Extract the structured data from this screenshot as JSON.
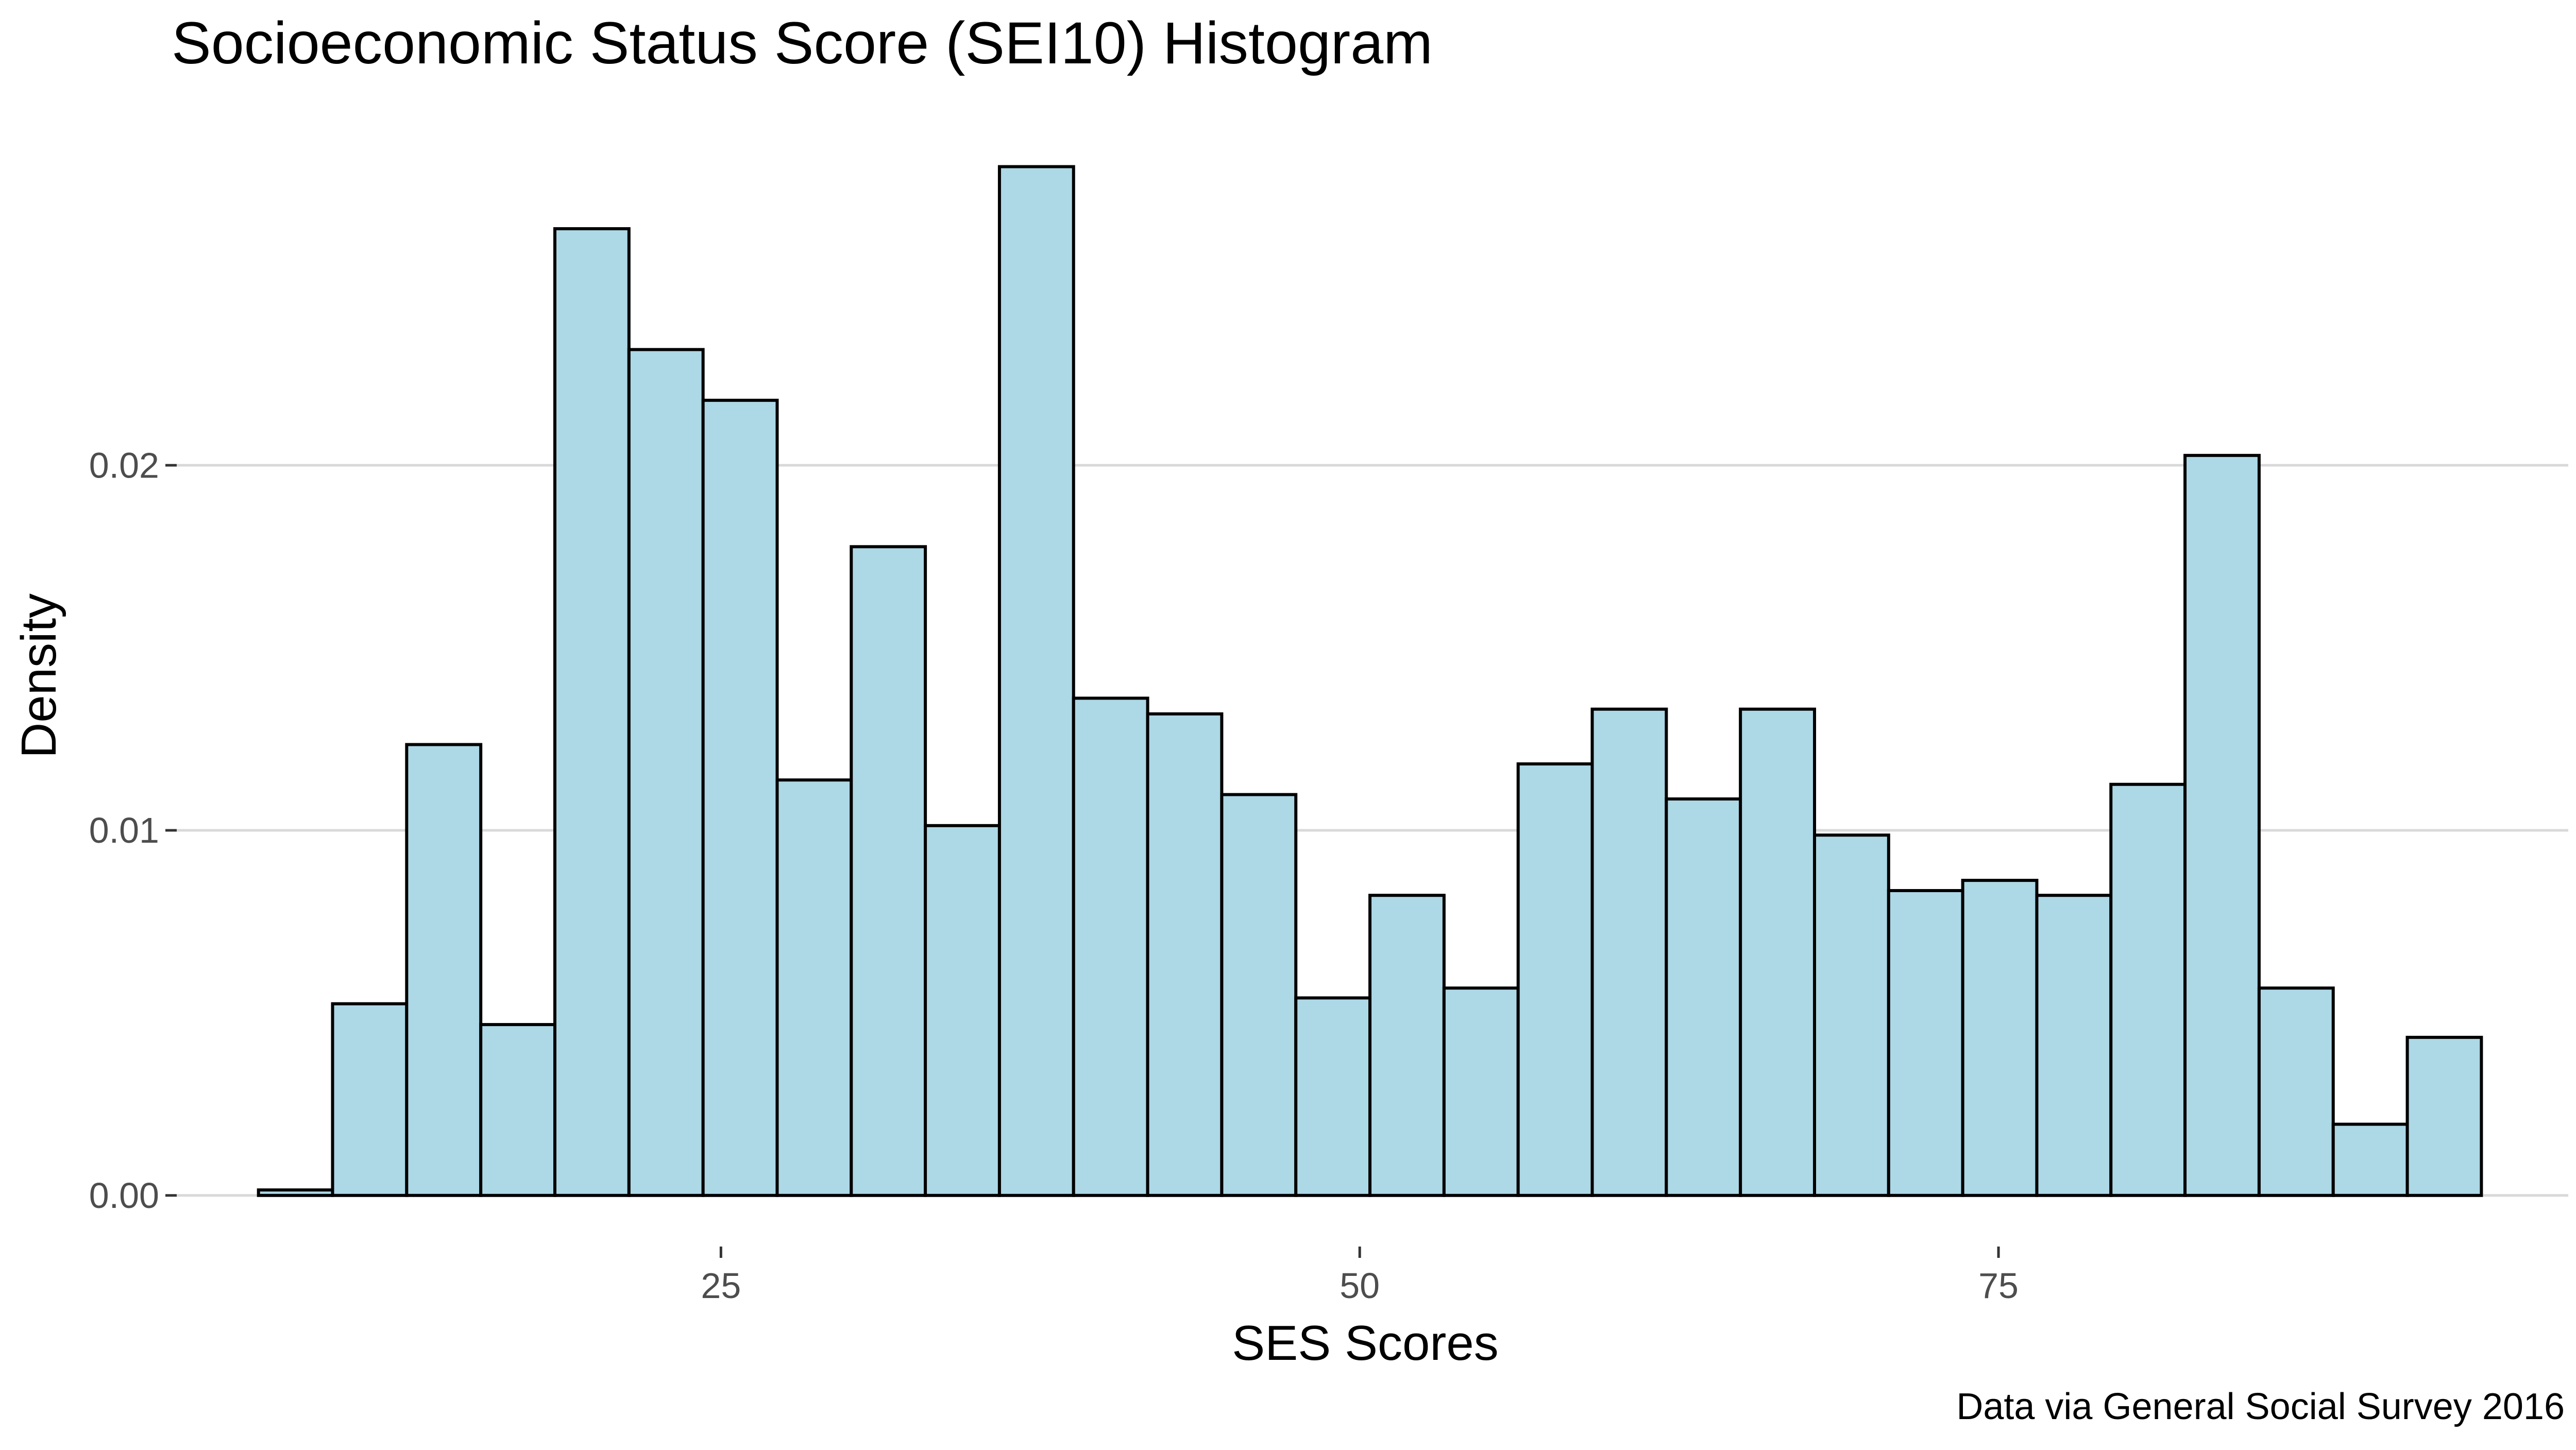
{
  "chart_data": {
    "type": "bar",
    "title": "Socioeconomic Status Score (SEI10) Histogram",
    "xlabel": "SES Scores",
    "ylabel": "Density",
    "caption": "Data via General Social Survey 2016",
    "xlim": [
      3.7,
      97.3
    ],
    "ylim": [
      -0.0014,
      0.0295
    ],
    "x_ticks": [
      25,
      50,
      75
    ],
    "x_tick_labels": [
      "25",
      "50",
      "75"
    ],
    "y_ticks": [
      0.0,
      0.01,
      0.02
    ],
    "y_tick_labels": [
      "0.00",
      "0.01",
      "0.02"
    ],
    "grid": "horizontal major gridlines only",
    "bar_fill": "#add8e6",
    "bar_outline": "#000000",
    "bins": [
      {
        "x0": 6.9,
        "x1": 9.8,
        "density": 0.00015
      },
      {
        "x0": 9.8,
        "x1": 12.7,
        "density": 0.00525
      },
      {
        "x0": 12.7,
        "x1": 15.6,
        "density": 0.01235
      },
      {
        "x0": 15.6,
        "x1": 18.5,
        "density": 0.00468
      },
      {
        "x0": 18.5,
        "x1": 21.4,
        "density": 0.02648
      },
      {
        "x0": 21.4,
        "x1": 24.3,
        "density": 0.02317
      },
      {
        "x0": 24.3,
        "x1": 27.2,
        "density": 0.02178
      },
      {
        "x0": 27.2,
        "x1": 30.1,
        "density": 0.01138
      },
      {
        "x0": 30.1,
        "x1": 33.0,
        "density": 0.01777
      },
      {
        "x0": 33.0,
        "x1": 35.9,
        "density": 0.01013
      },
      {
        "x0": 35.9,
        "x1": 38.8,
        "density": 0.02818
      },
      {
        "x0": 38.8,
        "x1": 41.7,
        "density": 0.01362
      },
      {
        "x0": 41.7,
        "x1": 44.6,
        "density": 0.01319
      },
      {
        "x0": 44.6,
        "x1": 47.5,
        "density": 0.01098
      },
      {
        "x0": 47.5,
        "x1": 50.4,
        "density": 0.00541
      },
      {
        "x0": 50.4,
        "x1": 53.3,
        "density": 0.00822
      },
      {
        "x0": 53.3,
        "x1": 56.2,
        "density": 0.00568
      },
      {
        "x0": 56.2,
        "x1": 59.1,
        "density": 0.01182
      },
      {
        "x0": 59.1,
        "x1": 62.0,
        "density": 0.01332
      },
      {
        "x0": 62.0,
        "x1": 64.9,
        "density": 0.01086
      },
      {
        "x0": 64.9,
        "x1": 67.8,
        "density": 0.01332
      },
      {
        "x0": 67.8,
        "x1": 70.7,
        "density": 0.00987
      },
      {
        "x0": 70.7,
        "x1": 73.6,
        "density": 0.00835
      },
      {
        "x0": 73.6,
        "x1": 76.5,
        "density": 0.00863
      },
      {
        "x0": 76.5,
        "x1": 79.4,
        "density": 0.00822
      },
      {
        "x0": 79.4,
        "x1": 82.3,
        "density": 0.01126
      },
      {
        "x0": 82.3,
        "x1": 85.2,
        "density": 0.02027
      },
      {
        "x0": 85.2,
        "x1": 88.1,
        "density": 0.00568
      },
      {
        "x0": 88.1,
        "x1": 91.0,
        "density": 0.00195
      },
      {
        "x0": 91.0,
        "x1": 93.9,
        "density": 0.00433
      }
    ]
  }
}
